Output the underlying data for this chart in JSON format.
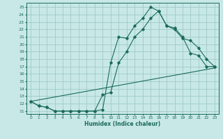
{
  "xlabel": "Humidex (Indice chaleur)",
  "bg_color": "#c8e8e8",
  "grid_color": "#a0c8c8",
  "line_color": "#1a6b5a",
  "xlim": [
    -0.5,
    23.5
  ],
  "ylim": [
    10.6,
    25.6
  ],
  "xticks": [
    0,
    1,
    2,
    3,
    4,
    5,
    6,
    7,
    8,
    9,
    10,
    11,
    12,
    13,
    14,
    15,
    16,
    17,
    18,
    19,
    20,
    21,
    22,
    23
  ],
  "yticks": [
    11,
    12,
    13,
    14,
    15,
    16,
    17,
    18,
    19,
    20,
    21,
    22,
    23,
    24,
    25
  ],
  "line1_x": [
    0,
    1,
    2,
    3,
    4,
    5,
    6,
    7,
    8,
    9,
    10,
    11,
    12,
    13,
    14,
    15,
    16,
    17,
    18,
    19,
    20,
    21,
    22,
    23
  ],
  "line1_y": [
    12.3,
    11.7,
    11.5,
    11.0,
    11.0,
    11.0,
    11.0,
    11.0,
    11.0,
    11.2,
    17.5,
    21.0,
    20.8,
    22.5,
    23.5,
    25.0,
    24.5,
    22.5,
    22.2,
    21.0,
    18.8,
    18.5,
    17.0,
    17.0
  ],
  "line2_x": [
    0,
    1,
    2,
    3,
    4,
    5,
    6,
    7,
    8,
    9,
    10,
    11,
    12,
    13,
    14,
    15,
    16,
    17,
    18,
    19,
    20,
    21,
    22,
    23
  ],
  "line2_y": [
    12.3,
    11.7,
    11.5,
    11.0,
    11.0,
    11.0,
    11.0,
    11.0,
    11.0,
    13.2,
    13.5,
    17.5,
    19.0,
    21.0,
    22.0,
    23.5,
    24.5,
    22.5,
    22.0,
    20.8,
    20.5,
    19.5,
    18.0,
    17.0
  ],
  "line3_x": [
    0,
    23
  ],
  "line3_y": [
    12.3,
    16.8
  ]
}
